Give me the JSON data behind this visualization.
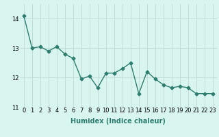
{
  "x": [
    0,
    1,
    2,
    3,
    4,
    5,
    6,
    7,
    8,
    9,
    10,
    11,
    12,
    13,
    14,
    15,
    16,
    17,
    18,
    19,
    20,
    21,
    22,
    23
  ],
  "y": [
    14.1,
    13.0,
    13.05,
    12.9,
    13.05,
    12.8,
    12.65,
    11.95,
    12.05,
    11.65,
    12.15,
    12.15,
    12.3,
    12.5,
    11.45,
    12.2,
    11.95,
    11.75,
    11.65,
    11.7,
    11.65,
    11.45,
    11.45,
    11.45
  ],
  "line_color": "#2e7d6e",
  "marker": "D",
  "marker_size": 2.5,
  "line_width": 1.0,
  "bg_color": "#d8f5f0",
  "grid_color": "#c0ddd8",
  "xlabel": "Humidex (Indice chaleur)",
  "ylim": [
    11.0,
    14.5
  ],
  "yticks": [
    11,
    12,
    13,
    14
  ],
  "xtick_labels": [
    "0",
    "1",
    "2",
    "3",
    "4",
    "5",
    "6",
    "7",
    "8",
    "9",
    "10",
    "11",
    "12",
    "13",
    "14",
    "15",
    "16",
    "17",
    "18",
    "19",
    "20",
    "21",
    "22",
    "23"
  ],
  "xlabel_fontsize": 7.0,
  "tick_fontsize": 6.0
}
